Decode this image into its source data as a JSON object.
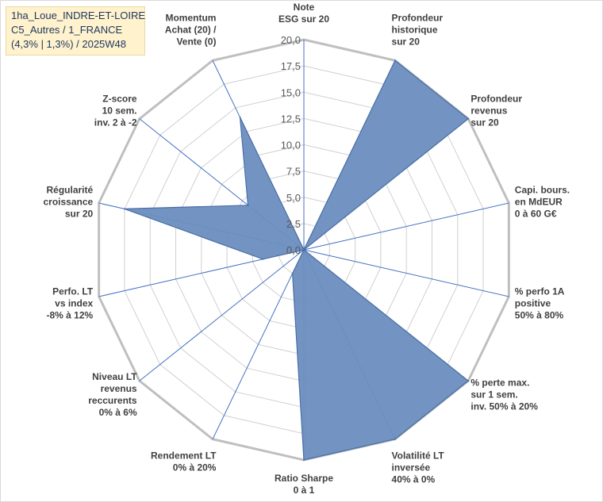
{
  "title_box": {
    "line1": "1ha_Loue_INDRE-ET-LOIRE",
    "line2": "C5_Autres / 1_FRANCE",
    "line3": "(4,3% | 1,3%) / 2025W48"
  },
  "chart_data": {
    "type": "radar",
    "r_range": [
      0,
      20
    ],
    "r_ticks": [
      "0,0",
      "2,5",
      "5,0",
      "7,5",
      "10,0",
      "12,5",
      "15,0",
      "17,5",
      "20,0"
    ],
    "grid": true,
    "axes": [
      {
        "label": [
          "Note",
          "ESG sur 20"
        ],
        "value": 0
      },
      {
        "label": [
          "Profondeur",
          "historique",
          "sur 20"
        ],
        "value": 20
      },
      {
        "label": [
          "Profondeur",
          "revenus",
          "sur 20"
        ],
        "value": 20
      },
      {
        "label": [
          "Capi. bours.",
          "en MdEUR",
          "0 à 60 G€"
        ],
        "value": 0
      },
      {
        "label": [
          "% perfo 1A",
          "positive",
          "50% à 80%"
        ],
        "value": 0
      },
      {
        "label": [
          "% perte max.",
          "sur 1 sem.",
          "inv. 50% à 20%"
        ],
        "value": 20
      },
      {
        "label": [
          "Volatilité LT",
          "inversée",
          "40% à 0%"
        ],
        "value": 20
      },
      {
        "label": [
          "Ratio Sharpe",
          "0 à 1"
        ],
        "value": 20
      },
      {
        "label": [
          "Rendement LT",
          "0% à 20%"
        ],
        "value": 2.5
      },
      {
        "label": [
          "Niveau LT",
          "revenus",
          "reccurents",
          "0% à 6%"
        ],
        "value": 0
      },
      {
        "label": [
          "Perfo. LT",
          "vs index",
          "-8% à 12%"
        ],
        "value": 4
      },
      {
        "label": [
          "Régularité",
          "croissance",
          "sur 20"
        ],
        "value": 17.5
      },
      {
        "label": [
          "Z-score",
          "10 sem.",
          "inv. 2 à -2"
        ],
        "value": 6.8
      },
      {
        "label": [
          "Momentum",
          "Achat (20) /",
          "Vente (0)"
        ],
        "value": 14
      }
    ],
    "colors": {
      "fill": "#6c8ebf",
      "stroke": "#4a6fa5",
      "spokes": "#4472c4",
      "grid": "#d0d0d0"
    }
  }
}
